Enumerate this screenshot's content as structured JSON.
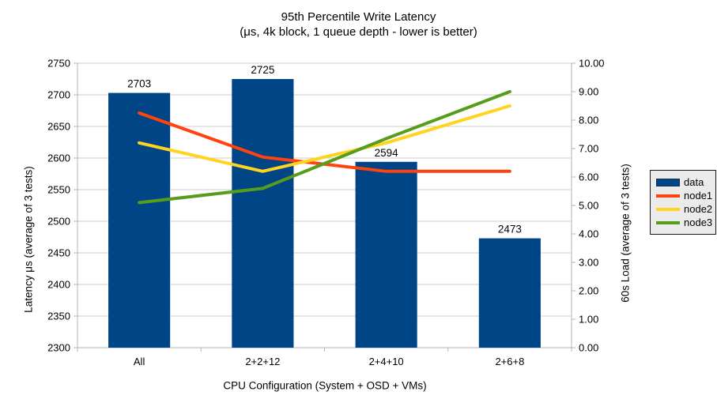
{
  "title": {
    "line1": "95th Percentile Write Latency",
    "line2": "(μs, 4k block, 1 queue depth - lower is better)"
  },
  "chart_data": {
    "type": "bar",
    "subtype": "combo-bar-line-dual-axis",
    "categories": [
      "All",
      "2+2+12",
      "2+4+10",
      "2+6+8"
    ],
    "bar_series": {
      "name": "data",
      "color": "#004586",
      "axis": "left",
      "values": [
        2703,
        2725,
        2594,
        2473
      ],
      "labels": [
        "2703",
        "2725",
        "2594",
        "2473"
      ]
    },
    "line_series": [
      {
        "name": "node1",
        "color": "#FF420E",
        "axis": "right",
        "values": [
          8.25,
          6.7,
          6.2,
          6.2
        ]
      },
      {
        "name": "node2",
        "color": "#FFD320",
        "axis": "right",
        "values": [
          7.2,
          6.2,
          7.2,
          8.5
        ]
      },
      {
        "name": "node3",
        "color": "#579D1C",
        "axis": "right",
        "values": [
          5.1,
          5.6,
          7.35,
          9.0
        ]
      }
    ],
    "left_axis": {
      "label": "Latency μs (average of 3 tests)",
      "min": 2300,
      "max": 2750,
      "tick_step": 50,
      "ticks": [
        "2750",
        "2700",
        "2650",
        "2600",
        "2550",
        "2500",
        "2450",
        "2400",
        "2350",
        "2300"
      ]
    },
    "right_axis": {
      "label": "60s Load (average of 3 tests)",
      "min": 0,
      "max": 10,
      "tick_step": 1,
      "ticks": [
        "10.00",
        "9.00",
        "8.00",
        "7.00",
        "6.00",
        "5.00",
        "4.00",
        "3.00",
        "2.00",
        "1.00",
        "0.00"
      ]
    },
    "x_axis": {
      "label": "CPU Configuration (System + OSD + VMs)"
    },
    "legend": {
      "position": "right",
      "entries": [
        {
          "label": "data",
          "color": "#004586",
          "type": "bar"
        },
        {
          "label": "node1",
          "color": "#FF420E",
          "type": "line"
        },
        {
          "label": "node2",
          "color": "#FFD320",
          "type": "line"
        },
        {
          "label": "node3",
          "color": "#579D1C",
          "type": "line"
        }
      ]
    },
    "grid": true,
    "colors": {
      "axis_line": "#b3b3b3",
      "grid_line": "#cccccc",
      "text": "#000000",
      "legend_bg": "#ebebeb"
    }
  }
}
